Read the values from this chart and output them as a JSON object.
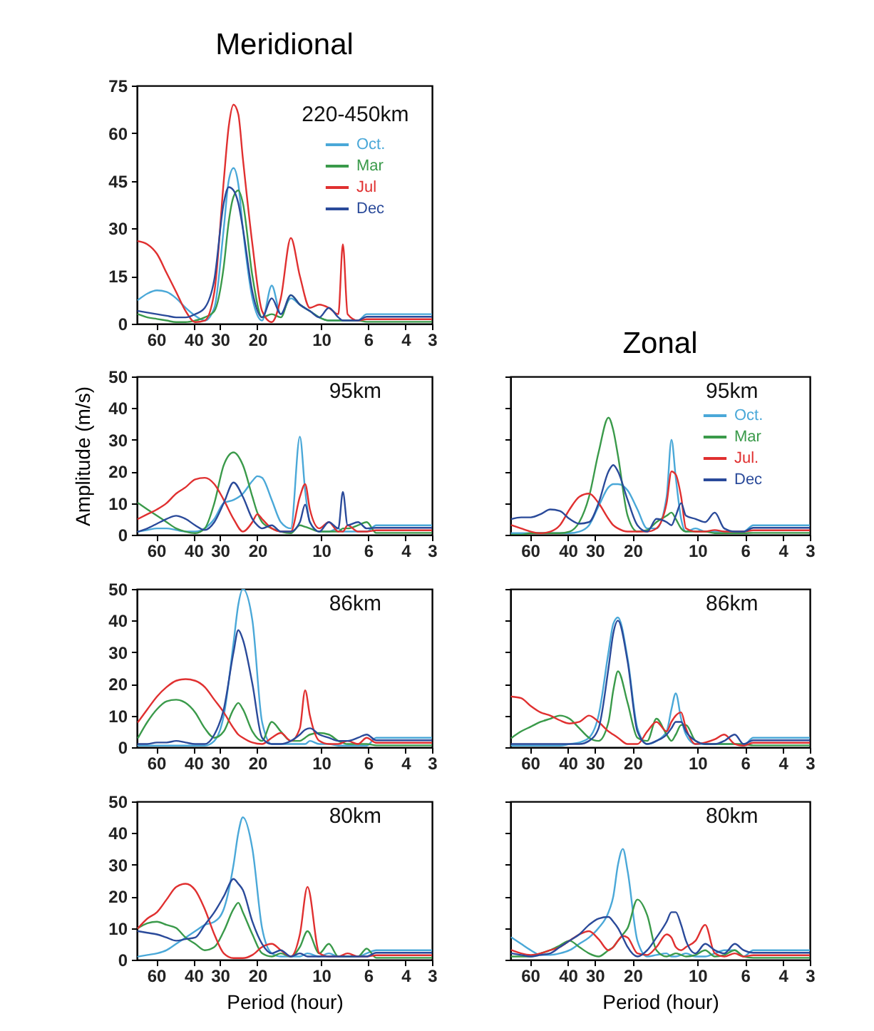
{
  "chart_data": [
    {
      "type": "line",
      "title": "Meridional",
      "annotations": [
        "220-450km"
      ],
      "log": "x",
      "xlim": [
        74,
        3
      ],
      "xticks": [
        60,
        40,
        30,
        20,
        10,
        6,
        4,
        3
      ],
      "ylim": [
        0,
        75
      ],
      "yticks": [
        0,
        15,
        30,
        45,
        60,
        75
      ],
      "legend": "top right",
      "x": [
        73,
        66,
        59.5,
        53.6,
        48.3,
        43.6,
        39.3,
        35.4,
        31.9,
        28.8,
        27.3,
        25.9,
        24.6,
        23.4,
        21.1,
        19,
        17.1,
        15.5,
        13.9,
        12.6,
        11.3,
        10.2,
        9.2,
        8.3,
        7.9,
        7.5,
        6.7,
        6.1,
        5.5,
        4.9,
        4.4,
        4,
        3.6,
        3.3,
        3
      ],
      "series": [
        {
          "name": "Oct.",
          "color": "#4aa8d8",
          "values": [
            7.5,
            9.5,
            10.5,
            10,
            8,
            5,
            2.5,
            1,
            5,
            30,
            45,
            49,
            44,
            30,
            8,
            1,
            12,
            3,
            8,
            6,
            4,
            2,
            1,
            1,
            1,
            1,
            1,
            3,
            3,
            3,
            3,
            3,
            3,
            3,
            3
          ]
        },
        {
          "name": "Mar",
          "color": "#3a9a4a",
          "values": [
            3,
            2,
            1.5,
            1,
            0.5,
            0.5,
            1,
            2,
            4,
            18,
            32,
            40,
            42,
            38,
            15,
            2,
            3,
            2,
            9,
            6,
            4,
            2,
            1,
            1,
            1,
            1,
            1,
            0.6,
            0.6,
            0.6,
            0.6,
            0.6,
            0.6,
            0.6,
            0.6
          ]
        },
        {
          "name": "Jul",
          "color": "#e03030",
          "values": [
            26,
            25,
            22,
            16,
            10,
            4,
            0.5,
            1,
            10,
            45,
            62,
            69,
            66,
            52,
            25,
            4,
            0.5,
            8,
            27,
            15,
            5,
            6,
            5,
            3,
            25,
            3,
            1,
            1.4,
            1.4,
            1.4,
            1.4,
            1.4,
            1.4,
            1.4,
            1.4
          ]
        },
        {
          "name": "Dec",
          "color": "#2a4a9a",
          "values": [
            4,
            3.5,
            3,
            2.5,
            2,
            2,
            3,
            5,
            14,
            38,
            43,
            42,
            38,
            30,
            10,
            2,
            8,
            3,
            9,
            6,
            4,
            2,
            5,
            2,
            1,
            1,
            1,
            2.2,
            2.2,
            2.2,
            2.2,
            2.2,
            2.2,
            2.2,
            2.2
          ]
        }
      ]
    },
    {
      "type": "line",
      "ylabel": "Amplitude (m/s)",
      "annotations": [
        "95km"
      ],
      "log": "x",
      "xlim": [
        74,
        3
      ],
      "xticks": [
        60,
        40,
        30,
        20,
        10,
        6,
        4,
        3
      ],
      "ylim": [
        0,
        50
      ],
      "yticks": [
        0,
        10,
        20,
        30,
        40,
        50
      ],
      "x": [
        73,
        66,
        59.5,
        53.6,
        48.3,
        43.6,
        39.3,
        35.4,
        31.9,
        28.8,
        25.9,
        23.4,
        21.1,
        20,
        19,
        17.1,
        15.5,
        13.9,
        12.6,
        11.9,
        11.3,
        10.2,
        9.2,
        8.3,
        7.9,
        7.5,
        6.7,
        6.1,
        5.5,
        4.9,
        4.4,
        4,
        3.6,
        3.3,
        3
      ],
      "series": [
        {
          "color": "#4aa8d8",
          "values": [
            1,
            1.5,
            2,
            2,
            1.5,
            1,
            1,
            2,
            5,
            10,
            11,
            13,
            17,
            18.5,
            18,
            11,
            4,
            2,
            31,
            14,
            4,
            1,
            1,
            2,
            1,
            1,
            1,
            1,
            3,
            3,
            3,
            3,
            3,
            3,
            3
          ]
        },
        {
          "color": "#3a9a4a",
          "values": [
            10,
            8,
            6,
            4,
            2,
            1,
            0.5,
            2,
            10,
            22,
            26,
            22,
            12,
            7,
            4,
            2,
            1,
            0.5,
            3,
            2.5,
            2,
            1,
            1,
            1,
            2,
            2,
            3,
            4,
            0.6,
            0.6,
            0.6,
            0.6,
            0.6,
            0.6,
            0.6
          ]
        },
        {
          "color": "#e03030",
          "values": [
            5,
            6.5,
            8,
            10,
            13,
            15,
            17.5,
            18,
            16,
            11,
            5,
            1,
            4,
            6.5,
            5,
            2,
            1,
            1,
            12,
            16,
            8,
            2,
            4,
            1,
            1,
            3,
            1,
            1,
            1.4,
            1.4,
            1.4,
            1.4,
            1.4,
            1.4,
            1.4
          ]
        },
        {
          "color": "#2a4a9a",
          "values": [
            1,
            2,
            3.5,
            5,
            6,
            5,
            3,
            1.5,
            4,
            10,
            16.5,
            12,
            5,
            3,
            2,
            3,
            1,
            1,
            4,
            9.5,
            4,
            1,
            4,
            2,
            13.5,
            3,
            4,
            2,
            2.2,
            2.2,
            2.2,
            2.2,
            2.2,
            2.2,
            2.2
          ]
        }
      ]
    },
    {
      "type": "line",
      "annotations": [
        "86km"
      ],
      "log": "x",
      "xlim": [
        74,
        3
      ],
      "xticks": [
        60,
        40,
        30,
        20,
        10,
        6,
        4,
        3
      ],
      "ylim": [
        0,
        50
      ],
      "yticks": [
        0,
        10,
        20,
        30,
        40,
        50
      ],
      "x": [
        73,
        66,
        59.5,
        53.6,
        48.3,
        43.6,
        39.3,
        35.4,
        31.9,
        28.8,
        25.9,
        24.6,
        23.4,
        21.1,
        19,
        17.1,
        15.5,
        13.9,
        12.6,
        11.9,
        11.3,
        10.2,
        9.2,
        8.3,
        7.5,
        6.7,
        6.1,
        5.5,
        4.9,
        4.4,
        4,
        3.6,
        3.3,
        3
      ],
      "series": [
        {
          "color": "#4aa8d8",
          "values": [
            0.5,
            0.5,
            0.5,
            0.5,
            0.5,
            0.5,
            0.5,
            0.5,
            2,
            10,
            33,
            45,
            50,
            40,
            8,
            1,
            1,
            1,
            1,
            1,
            2,
            1,
            1,
            0.5,
            0.5,
            0.5,
            0.5,
            3,
            3,
            3,
            3,
            3,
            3,
            3
          ]
        },
        {
          "color": "#3a9a4a",
          "values": [
            3,
            8,
            12,
            14.5,
            15,
            14,
            11,
            6,
            3,
            5,
            12,
            14,
            12,
            5,
            2,
            8,
            5,
            2,
            2,
            3,
            4,
            4.5,
            4,
            2,
            1,
            1,
            1,
            0.6,
            0.6,
            0.6,
            0.6,
            0.6,
            0.6,
            0.6
          ]
        },
        {
          "color": "#e03030",
          "values": [
            8,
            12,
            16,
            19,
            21,
            21.5,
            21,
            19,
            15,
            11,
            6,
            4,
            3,
            1.5,
            1,
            3,
            4.5,
            2,
            6,
            18,
            10,
            2,
            1,
            1,
            2,
            1,
            3,
            1.4,
            1.4,
            1.4,
            1.4,
            1.4,
            1.4,
            1.4
          ]
        },
        {
          "color": "#2a4a9a",
          "values": [
            1,
            1,
            1.5,
            1.5,
            2,
            1.5,
            1,
            1,
            4,
            12,
            30,
            37,
            34,
            20,
            3,
            1,
            1,
            2,
            4,
            5.5,
            6,
            4,
            3,
            2,
            2,
            3,
            4,
            2.2,
            2.2,
            2.2,
            2.2,
            2.2,
            2.2,
            2.2
          ]
        }
      ]
    },
    {
      "type": "line",
      "xlabel": "Period (hour)",
      "annotations": [
        "80km"
      ],
      "log": "x",
      "xlim": [
        74,
        3
      ],
      "xticks": [
        60,
        40,
        30,
        20,
        10,
        6,
        4,
        3
      ],
      "ylim": [
        0,
        50
      ],
      "yticks": [
        0,
        10,
        20,
        30,
        40,
        50
      ],
      "x": [
        73,
        66,
        59.5,
        53.6,
        48.3,
        43.6,
        39.3,
        35.4,
        31.9,
        28.8,
        25.9,
        24.6,
        23.4,
        21.1,
        19,
        17.1,
        15.5,
        13.9,
        12.6,
        11.6,
        10.2,
        9.2,
        8.3,
        7.5,
        6.7,
        6.1,
        5.5,
        4.9,
        4.4,
        4,
        3.6,
        3.3,
        3
      ],
      "series": [
        {
          "color": "#4aa8d8",
          "values": [
            1,
            1.5,
            2,
            3,
            5,
            7,
            9,
            11,
            12,
            16,
            30,
            40,
            45,
            35,
            10,
            2,
            1,
            1,
            1,
            2,
            1,
            2,
            1,
            1,
            1,
            2,
            3,
            3,
            3,
            3,
            3,
            3,
            3
          ]
        },
        {
          "color": "#3a9a4a",
          "values": [
            10,
            11.5,
            12,
            11,
            10,
            7,
            5,
            3,
            4,
            9,
            16,
            18,
            15,
            8,
            2,
            1,
            2,
            1,
            4,
            9,
            2,
            5,
            1,
            1,
            1,
            3.5,
            0.6,
            0.6,
            0.6,
            0.6,
            0.6,
            0.6,
            0.6
          ]
        },
        {
          "color": "#e03030",
          "values": [
            10,
            13,
            15,
            19,
            23,
            24,
            22,
            16,
            8,
            2,
            0.5,
            0.5,
            0.5,
            1.5,
            4,
            5,
            3,
            1,
            8,
            23,
            2,
            1,
            1,
            2,
            1,
            1,
            1.4,
            1.4,
            1.4,
            1.4,
            1.4,
            1.4,
            1.4
          ]
        },
        {
          "color": "#2a4a9a",
          "values": [
            9,
            8.5,
            8,
            7,
            6,
            6.5,
            7,
            11,
            15,
            20,
            25.5,
            24,
            22,
            12,
            5,
            2,
            3,
            1,
            2,
            1,
            1,
            1,
            1,
            1,
            1,
            1,
            2.2,
            2.2,
            2.2,
            2.2,
            2.2,
            2.2,
            2.2
          ]
        }
      ]
    },
    {
      "type": "line",
      "title": "Zonal",
      "annotations": [
        "95km"
      ],
      "log": "x",
      "xlim": [
        74,
        3
      ],
      "xticks": [
        60,
        40,
        30,
        20,
        10,
        6,
        4,
        3
      ],
      "ylim": [
        0,
        50
      ],
      "yticks": [
        0,
        10,
        20,
        30,
        40,
        50
      ],
      "tick_labels": "x",
      "legend": "top right",
      "x": [
        73,
        66,
        59.5,
        53.6,
        48.3,
        43.6,
        39.3,
        35.4,
        31.9,
        28.8,
        25.9,
        24.6,
        23.4,
        21.1,
        19,
        17.1,
        15.5,
        13.9,
        13.2,
        12.6,
        11.9,
        11.3,
        10.2,
        9.2,
        8.3,
        7.5,
        6.7,
        6.1,
        5.5,
        4.9,
        4.4,
        4,
        3.6,
        3.3,
        3
      ],
      "series": [
        {
          "name": "Oct.",
          "color": "#4aa8d8",
          "values": [
            0.5,
            0.5,
            0.5,
            0.5,
            0.5,
            0.5,
            0.5,
            1,
            3,
            9,
            15,
            16,
            16,
            14,
            8,
            2,
            2,
            12,
            30,
            18,
            5,
            1,
            2,
            1,
            1,
            1,
            1,
            1,
            3,
            3,
            3,
            3,
            3,
            3,
            3
          ]
        },
        {
          "name": "Mar",
          "color": "#3a9a4a",
          "values": [
            0,
            0,
            0.5,
            0.5,
            0.5,
            0.5,
            1,
            4,
            12,
            26,
            37,
            33,
            25,
            6,
            1,
            1.5,
            4,
            6,
            7,
            5,
            2,
            1,
            1,
            1,
            0.5,
            0.5,
            0.5,
            0.5,
            0.6,
            0.6,
            0.6,
            0.6,
            0.6,
            0.6,
            0.6
          ]
        },
        {
          "name": "Jul.",
          "color": "#e03030",
          "values": [
            3,
            2,
            1,
            0.5,
            1,
            3,
            8,
            12,
            13,
            10,
            5,
            3,
            2,
            1,
            1,
            1,
            2,
            10,
            20,
            19,
            12,
            2,
            1,
            1,
            1.5,
            1,
            1,
            1,
            1.4,
            1.4,
            1.4,
            1.4,
            1.4,
            1.4,
            1.4
          ]
        },
        {
          "name": "Dec",
          "color": "#2a4a9a",
          "values": [
            5,
            5.5,
            5.5,
            6.5,
            8,
            7.5,
            5,
            3.5,
            4,
            10,
            20,
            22,
            20,
            11,
            3,
            1,
            5,
            4,
            3,
            6,
            10,
            6,
            5,
            4,
            7,
            2,
            1,
            1,
            2.2,
            2.2,
            2.2,
            2.2,
            2.2,
            2.2,
            2.2
          ]
        }
      ]
    },
    {
      "type": "line",
      "annotations": [
        "86km"
      ],
      "log": "x",
      "xlim": [
        74,
        3
      ],
      "xticks": [
        60,
        40,
        30,
        20,
        10,
        6,
        4,
        3
      ],
      "ylim": [
        0,
        50
      ],
      "yticks": [
        0,
        10,
        20,
        30,
        40,
        50
      ],
      "tick_labels": "x",
      "x": [
        73,
        66,
        59.5,
        53.6,
        48.3,
        43.6,
        39.3,
        35.4,
        31.9,
        28.8,
        25.9,
        24.6,
        23.4,
        21.1,
        19,
        17.1,
        15.5,
        13.9,
        13.2,
        12.6,
        11.9,
        11.3,
        10.2,
        9.2,
        8.3,
        7.5,
        6.7,
        6.1,
        5.5,
        4.9,
        4.4,
        4,
        3.6,
        3.3,
        3
      ],
      "series": [
        {
          "color": "#4aa8d8",
          "values": [
            0.5,
            0.5,
            0.5,
            0.5,
            0.5,
            0.5,
            1,
            1.5,
            3,
            10,
            30,
            39,
            41,
            28,
            6,
            1,
            2,
            5,
            12,
            17,
            9,
            4,
            1,
            1,
            1,
            1,
            1,
            0.5,
            3,
            3,
            3,
            3,
            3,
            3,
            3
          ]
        },
        {
          "color": "#3a9a4a",
          "values": [
            3,
            5,
            6.5,
            8,
            9,
            10,
            9,
            6,
            3,
            2,
            8,
            18,
            24,
            14,
            3,
            2,
            9,
            4,
            2,
            4,
            7,
            7,
            2,
            1,
            1,
            1,
            1,
            1,
            0.6,
            0.6,
            0.6,
            0.6,
            0.6,
            0.6,
            0.6
          ]
        },
        {
          "color": "#e03030",
          "values": [
            16,
            15.5,
            13,
            11,
            10,
            8.5,
            7.5,
            8,
            10,
            8,
            5,
            4,
            3,
            1,
            1,
            5,
            8,
            5,
            8,
            10,
            11,
            6,
            1,
            1.5,
            2.5,
            4,
            1,
            0.5,
            1.4,
            1.4,
            1.4,
            1.4,
            1.4,
            1.4,
            1.4
          ]
        },
        {
          "color": "#2a4a9a",
          "values": [
            1,
            1,
            1,
            1,
            1,
            1,
            1,
            1,
            2,
            6,
            25,
            36,
            40,
            27,
            5,
            1,
            2,
            4,
            6,
            8,
            8,
            5,
            2,
            1,
            1,
            2,
            4,
            1,
            2.2,
            2.2,
            2.2,
            2.2,
            2.2,
            2.2,
            2.2
          ]
        }
      ]
    },
    {
      "type": "line",
      "xlabel": "Period (hour)",
      "annotations": [
        "80km"
      ],
      "log": "x",
      "xlim": [
        74,
        3
      ],
      "xticks": [
        60,
        40,
        30,
        20,
        10,
        6,
        4,
        3
      ],
      "ylim": [
        0,
        50
      ],
      "yticks": [
        0,
        10,
        20,
        30,
        40,
        50
      ],
      "tick_labels": "x",
      "x": [
        73,
        66,
        59.5,
        53.6,
        48.3,
        43.6,
        39.3,
        35.4,
        31.9,
        28.8,
        25.9,
        24.6,
        23.4,
        22.2,
        21.1,
        19,
        17.1,
        15.5,
        13.9,
        13.2,
        12.6,
        11.9,
        11.3,
        10.2,
        9.2,
        8.3,
        7.5,
        6.7,
        6.1,
        5.5,
        4.9,
        4.4,
        4,
        3.6,
        3.3,
        3
      ],
      "series": [
        {
          "color": "#4aa8d8",
          "values": [
            7,
            5,
            3,
            1.5,
            1.5,
            2,
            3,
            5,
            7,
            10,
            15,
            20,
            30,
            35,
            28,
            6,
            1,
            1.5,
            2,
            1,
            1,
            1.5,
            2,
            1,
            1,
            2,
            3,
            3,
            1,
            3,
            3,
            3,
            3,
            3,
            3,
            3
          ]
        },
        {
          "color": "#3a9a4a",
          "values": [
            1,
            1,
            1,
            2,
            3,
            4.5,
            6,
            4,
            2,
            1,
            3,
            4,
            6,
            8,
            10,
            19,
            14,
            3,
            1,
            1.5,
            2,
            1.5,
            1,
            1.5,
            3,
            1,
            1.5,
            3,
            1,
            0.6,
            0.6,
            0.6,
            0.6,
            0.6,
            0.6,
            0.6
          ]
        },
        {
          "color": "#e03030",
          "values": [
            3,
            2,
            1.5,
            2,
            3,
            4,
            6,
            8,
            9,
            6.5,
            3,
            4,
            6,
            7.5,
            7,
            2,
            1.5,
            4,
            8,
            7,
            4,
            3,
            4,
            6,
            11,
            2,
            1,
            2,
            1,
            1.4,
            1.4,
            1.4,
            1.4,
            1.4,
            1.4,
            1.4
          ]
        },
        {
          "color": "#2a4a9a",
          "values": [
            2,
            1.5,
            1,
            1.5,
            2,
            4,
            6,
            8,
            11,
            13,
            13.5,
            12,
            10,
            7,
            4,
            1,
            3,
            7,
            12,
            15,
            15,
            11,
            6,
            2,
            5,
            3,
            2,
            5,
            3,
            2.2,
            2.2,
            2.2,
            2.2,
            2.2,
            2.2,
            2.2
          ]
        }
      ]
    }
  ]
}
